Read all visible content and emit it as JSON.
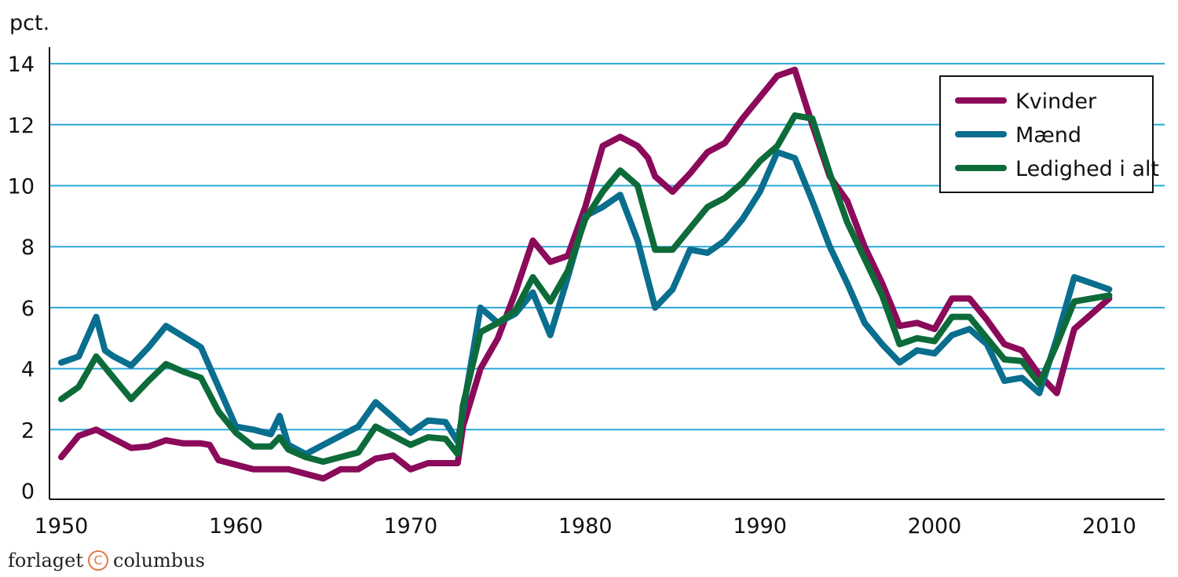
{
  "publisher": {
    "left": "forlaget",
    "right": "columbus",
    "icon": "copyright-circle-icon"
  },
  "chart_data": {
    "type": "line",
    "title": "",
    "xlabel": "",
    "ylabel": "pct.",
    "xlim": [
      1950,
      2012
    ],
    "ylim": [
      0,
      14
    ],
    "xticks": [
      1950,
      1960,
      1970,
      1980,
      1990,
      2000,
      2010
    ],
    "yticks": [
      0,
      2,
      4,
      6,
      8,
      10,
      12,
      14
    ],
    "grid": "horizontal",
    "legend": "top-right",
    "series": [
      {
        "name": "Kvinder",
        "color": "#8b0a5a",
        "x": [
          1950,
          1951,
          1952,
          1953,
          1954,
          1955,
          1956,
          1957,
          1958,
          1958.5,
          1959,
          1960,
          1961,
          1962,
          1963,
          1964,
          1965,
          1966,
          1967,
          1968,
          1969,
          1970,
          1971,
          1972,
          1972.7,
          1973,
          1974,
          1975,
          1976,
          1977,
          1978,
          1979,
          1980,
          1981,
          1982,
          1983,
          1983.6,
          1984,
          1985,
          1986,
          1987,
          1988,
          1989,
          1990,
          1991,
          1992,
          1993,
          1994,
          1995,
          1996,
          1997,
          1998,
          1999,
          2000,
          2001,
          2002,
          2003,
          2004,
          2005,
          2006,
          2007,
          2008,
          2009,
          2010
        ],
        "y": [
          1.1,
          1.8,
          2.0,
          1.7,
          1.4,
          1.45,
          1.65,
          1.55,
          1.55,
          1.5,
          1.0,
          0.85,
          0.7,
          0.7,
          0.7,
          0.55,
          0.4,
          0.7,
          0.7,
          1.05,
          1.15,
          0.7,
          0.9,
          0.9,
          0.9,
          2.1,
          4.0,
          5.0,
          6.5,
          8.2,
          7.5,
          7.7,
          9.3,
          11.3,
          11.6,
          11.3,
          10.9,
          10.3,
          9.8,
          10.4,
          11.1,
          11.4,
          12.2,
          12.9,
          13.6,
          13.8,
          12.0,
          10.3,
          9.5,
          8.0,
          6.8,
          5.4,
          5.5,
          5.3,
          6.3,
          6.3,
          5.6,
          4.8,
          4.6,
          3.8,
          3.2,
          5.3,
          5.8,
          6.3
        ]
      },
      {
        "name": "Mænd",
        "color": "#0a6e8e",
        "x": [
          1950,
          1951,
          1952,
          1952.5,
          1953,
          1954,
          1955,
          1956,
          1957,
          1958,
          1959,
          1960,
          1961,
          1962,
          1962.5,
          1963,
          1964,
          1965,
          1966,
          1967,
          1968,
          1969,
          1970,
          1971,
          1972,
          1972.7,
          1973,
          1974,
          1975,
          1976,
          1977,
          1978,
          1979,
          1980,
          1981,
          1982,
          1983,
          1984,
          1985,
          1986,
          1987,
          1988,
          1989,
          1990,
          1991,
          1992,
          1993,
          1994,
          1995,
          1996,
          1997,
          1998,
          1999,
          2000,
          2001,
          2002,
          2003,
          2004,
          2005,
          2006,
          2007,
          2008,
          2009,
          2010
        ],
        "y": [
          4.2,
          4.4,
          5.7,
          4.6,
          4.4,
          4.1,
          4.7,
          5.4,
          5.05,
          4.7,
          3.4,
          2.1,
          2.0,
          1.85,
          2.45,
          1.5,
          1.2,
          1.5,
          1.8,
          2.1,
          2.9,
          2.4,
          1.9,
          2.3,
          2.25,
          1.6,
          2.6,
          6.0,
          5.5,
          5.8,
          6.5,
          5.1,
          7.0,
          9.0,
          9.3,
          9.7,
          8.2,
          6.0,
          6.6,
          7.9,
          7.8,
          8.2,
          8.9,
          9.8,
          11.1,
          10.9,
          9.5,
          8.0,
          6.8,
          5.5,
          4.8,
          4.2,
          4.6,
          4.5,
          5.1,
          5.3,
          4.8,
          3.6,
          3.7,
          3.2,
          5.0,
          7.0,
          6.8,
          6.6
        ]
      },
      {
        "name": "Ledighed i alt",
        "color": "#0d6b3a",
        "x": [
          1950,
          1951,
          1952,
          1953,
          1954,
          1955,
          1956,
          1957,
          1958,
          1959,
          1960,
          1961,
          1962,
          1962.5,
          1963,
          1964,
          1965,
          1966,
          1967,
          1968,
          1969,
          1970,
          1971,
          1972,
          1972.7,
          1973,
          1974,
          1975,
          1976,
          1977,
          1978,
          1979,
          1980,
          1981,
          1982,
          1983,
          1984,
          1985,
          1986,
          1987,
          1988,
          1989,
          1990,
          1991,
          1992,
          1993,
          1994,
          1995,
          1996,
          1997,
          1998,
          1999,
          2000,
          2001,
          2002,
          2003,
          2004,
          2005,
          2006,
          2007,
          2008,
          2009,
          2010
        ],
        "y": [
          3.0,
          3.4,
          4.4,
          3.7,
          3.0,
          3.6,
          4.15,
          3.9,
          3.7,
          2.6,
          1.9,
          1.45,
          1.45,
          1.75,
          1.35,
          1.1,
          0.95,
          1.1,
          1.25,
          2.1,
          1.8,
          1.5,
          1.75,
          1.7,
          1.2,
          2.8,
          5.2,
          5.5,
          5.9,
          7.0,
          6.2,
          7.2,
          8.9,
          9.8,
          10.5,
          10.0,
          7.9,
          7.9,
          8.6,
          9.3,
          9.6,
          10.1,
          10.8,
          11.3,
          12.3,
          12.2,
          10.4,
          8.8,
          7.6,
          6.4,
          4.8,
          5.0,
          4.9,
          5.7,
          5.7,
          5.0,
          4.3,
          4.25,
          3.5,
          4.8,
          6.2,
          6.3,
          6.4
        ]
      }
    ]
  }
}
